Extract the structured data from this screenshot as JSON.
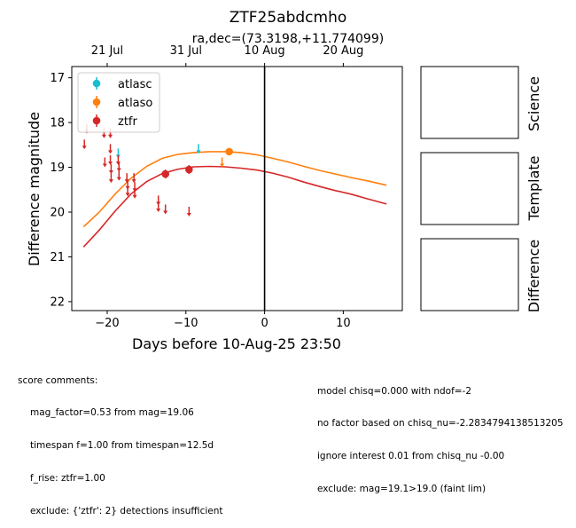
{
  "chart_data": {
    "type": "scatter",
    "title": "ZTF25abdcmho",
    "subtitle": "ra,dec=(73.3198,+11.774099)",
    "xlabel": "Days before 10-Aug-25 23:50",
    "ylabel": "Difference magnitude",
    "xlim": [
      -24.5,
      17.5
    ],
    "ylim": [
      22.2,
      16.75
    ],
    "y_inverted": true,
    "x_ticks": [
      -20,
      -10,
      0,
      10
    ],
    "x_tick_labels": [
      "−20",
      "−10",
      "0",
      "10"
    ],
    "y_ticks": [
      17,
      18,
      19,
      20,
      21,
      22
    ],
    "y_tick_labels": [
      "17",
      "18",
      "19",
      "20",
      "21",
      "22"
    ],
    "top_axis_ticks": [
      {
        "x": -20.0,
        "label": "21 Jul"
      },
      {
        "x": -10.0,
        "label": "31 Jul"
      },
      {
        "x": 0.0,
        "label": "10 Aug"
      },
      {
        "x": 10.0,
        "label": "20 Aug"
      }
    ],
    "vline_x": 0,
    "legend": {
      "position": "top-left",
      "entries": [
        "atlasc",
        "atlaso",
        "ztfr"
      ]
    },
    "series": [
      {
        "name": "atlasc",
        "color": "#17becf",
        "detections": [],
        "upper_limits": [
          {
            "x": -18.6,
            "y": 18.7
          },
          {
            "x": -8.4,
            "y": 18.6
          }
        ]
      },
      {
        "name": "atlaso",
        "color": "#ff7f0e",
        "detections": [
          {
            "x": -4.5,
            "y": 18.65,
            "err": 0.05
          }
        ],
        "upper_limits": [
          {
            "x": -5.4,
            "y": 18.9
          }
        ]
      },
      {
        "name": "ztfr",
        "color": "#d62728",
        "detections": [
          {
            "x": -12.6,
            "y": 19.15,
            "err": 0.1
          },
          {
            "x": -9.6,
            "y": 19.05,
            "err": 0.1
          }
        ],
        "upper_limits": [
          {
            "x": -22.9,
            "y": 18.5
          },
          {
            "x": -22.6,
            "y": 18.15
          },
          {
            "x": -20.4,
            "y": 18.25
          },
          {
            "x": -19.6,
            "y": 18.25
          },
          {
            "x": -20.3,
            "y": 18.9
          },
          {
            "x": -19.6,
            "y": 18.85
          },
          {
            "x": -19.5,
            "y": 19.05
          },
          {
            "x": -19.5,
            "y": 19.25
          },
          {
            "x": -19.6,
            "y": 18.6
          },
          {
            "x": -18.6,
            "y": 18.85
          },
          {
            "x": -18.5,
            "y": 19.0
          },
          {
            "x": -18.5,
            "y": 19.2
          },
          {
            "x": -17.5,
            "y": 19.25
          },
          {
            "x": -17.4,
            "y": 19.4
          },
          {
            "x": -17.4,
            "y": 19.55
          },
          {
            "x": -16.6,
            "y": 19.25
          },
          {
            "x": -16.5,
            "y": 19.45
          },
          {
            "x": -16.5,
            "y": 19.6
          },
          {
            "x": -13.5,
            "y": 19.75
          },
          {
            "x": -13.5,
            "y": 19.9
          },
          {
            "x": -12.6,
            "y": 19.95
          },
          {
            "x": -9.6,
            "y": 20.0
          }
        ]
      }
    ],
    "model_curves": [
      {
        "name": "atlaso",
        "color": "#ff7f0e",
        "points": [
          [
            -23,
            20.33
          ],
          [
            -21,
            20.0
          ],
          [
            -19,
            19.6
          ],
          [
            -17,
            19.25
          ],
          [
            -15,
            18.98
          ],
          [
            -13,
            18.8
          ],
          [
            -11,
            18.71
          ],
          [
            -9,
            18.67
          ],
          [
            -7,
            18.65
          ],
          [
            -5,
            18.65
          ],
          [
            -3,
            18.67
          ],
          [
            -1,
            18.72
          ],
          [
            1,
            18.8
          ],
          [
            3,
            18.88
          ],
          [
            5,
            18.98
          ],
          [
            7,
            19.07
          ],
          [
            9,
            19.15
          ],
          [
            11,
            19.23
          ],
          [
            13,
            19.3
          ],
          [
            15.5,
            19.4
          ]
        ]
      },
      {
        "name": "ztfr",
        "color": "#d62728",
        "points": [
          [
            -23,
            20.78
          ],
          [
            -21,
            20.4
          ],
          [
            -19,
            19.98
          ],
          [
            -17,
            19.6
          ],
          [
            -15,
            19.32
          ],
          [
            -13,
            19.14
          ],
          [
            -11,
            19.04
          ],
          [
            -9,
            18.99
          ],
          [
            -7,
            18.98
          ],
          [
            -5,
            18.99
          ],
          [
            -3,
            19.02
          ],
          [
            -1,
            19.06
          ],
          [
            1,
            19.13
          ],
          [
            3,
            19.22
          ],
          [
            5,
            19.33
          ],
          [
            7,
            19.43
          ],
          [
            9,
            19.52
          ],
          [
            11,
            19.6
          ],
          [
            13,
            19.7
          ],
          [
            15.5,
            19.82
          ]
        ]
      }
    ]
  },
  "panels": {
    "science_label": "Science",
    "template_label": "Template",
    "difference_label": "Difference"
  },
  "comments_left": {
    "heading": "score comments:",
    "lines": [
      "mag_factor=0.53 from mag=19.06",
      "timespan f=1.00 from timespan=12.5d",
      "f_rise: ztfr=1.00",
      "exclude: {'ztfr': 2} detections insufficient"
    ]
  },
  "comments_right": {
    "lines": [
      "model chisq=0.000 with ndof=-2",
      "no factor based on chisq_nu=-2.2834794138513205",
      "ignore interest 0.01 from chisq_nu -0.00",
      "exclude: mag=19.1>19.0 (faint lim)"
    ]
  }
}
